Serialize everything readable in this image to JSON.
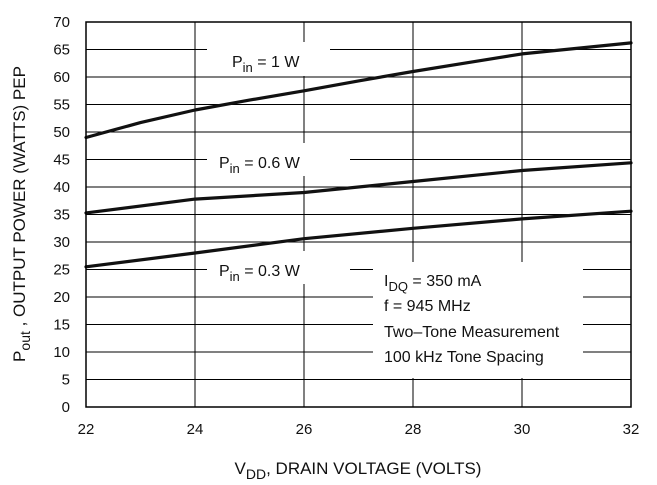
{
  "chart_data": {
    "type": "line",
    "xlabel": {
      "prefix": "V",
      "sub": "DD",
      "suffix": ", DRAIN VOLTAGE (VOLTS)"
    },
    "ylabel": {
      "prefix": "P",
      "sub": "out",
      "suffix": " , OUTPUT POWER (WATTS) PEP"
    },
    "xlim": [
      22,
      32
    ],
    "ylim": [
      0,
      70
    ],
    "x_ticks": [
      22,
      24,
      26,
      28,
      30,
      32
    ],
    "y_ticks": [
      0,
      5,
      10,
      15,
      20,
      25,
      30,
      35,
      40,
      45,
      50,
      55,
      60,
      65,
      70
    ],
    "grid": true,
    "series": [
      {
        "label_prefix": "P",
        "label_sub": "in",
        "label_suffix": " = 1 W",
        "x": [
          22,
          23,
          24,
          25,
          26,
          27,
          28,
          29,
          30,
          31,
          32
        ],
        "y": [
          49,
          51.7,
          54,
          55.8,
          57.5,
          59.3,
          61,
          62.6,
          64.2,
          65.2,
          66.2
        ]
      },
      {
        "label_prefix": "P",
        "label_sub": "in",
        "label_suffix": " = 0.6 W",
        "x": [
          22,
          24,
          26,
          28,
          30,
          32
        ],
        "y": [
          35.3,
          37.8,
          39,
          41,
          43,
          44.4
        ]
      },
      {
        "label_prefix": "P",
        "label_sub": "in",
        "label_suffix": " = 0.3 W",
        "x": [
          22,
          24,
          26,
          28,
          30,
          32
        ],
        "y": [
          25.5,
          28,
          30.6,
          32.5,
          34.2,
          35.6
        ]
      }
    ],
    "annotation": {
      "line1_prefix": "I",
      "line1_sub": "DQ",
      "line1_suffix": " = 350 mA",
      "line2": "f = 945 MHz",
      "line3": "Two–Tone Measurement",
      "line4": "100 kHz Tone Spacing"
    }
  }
}
